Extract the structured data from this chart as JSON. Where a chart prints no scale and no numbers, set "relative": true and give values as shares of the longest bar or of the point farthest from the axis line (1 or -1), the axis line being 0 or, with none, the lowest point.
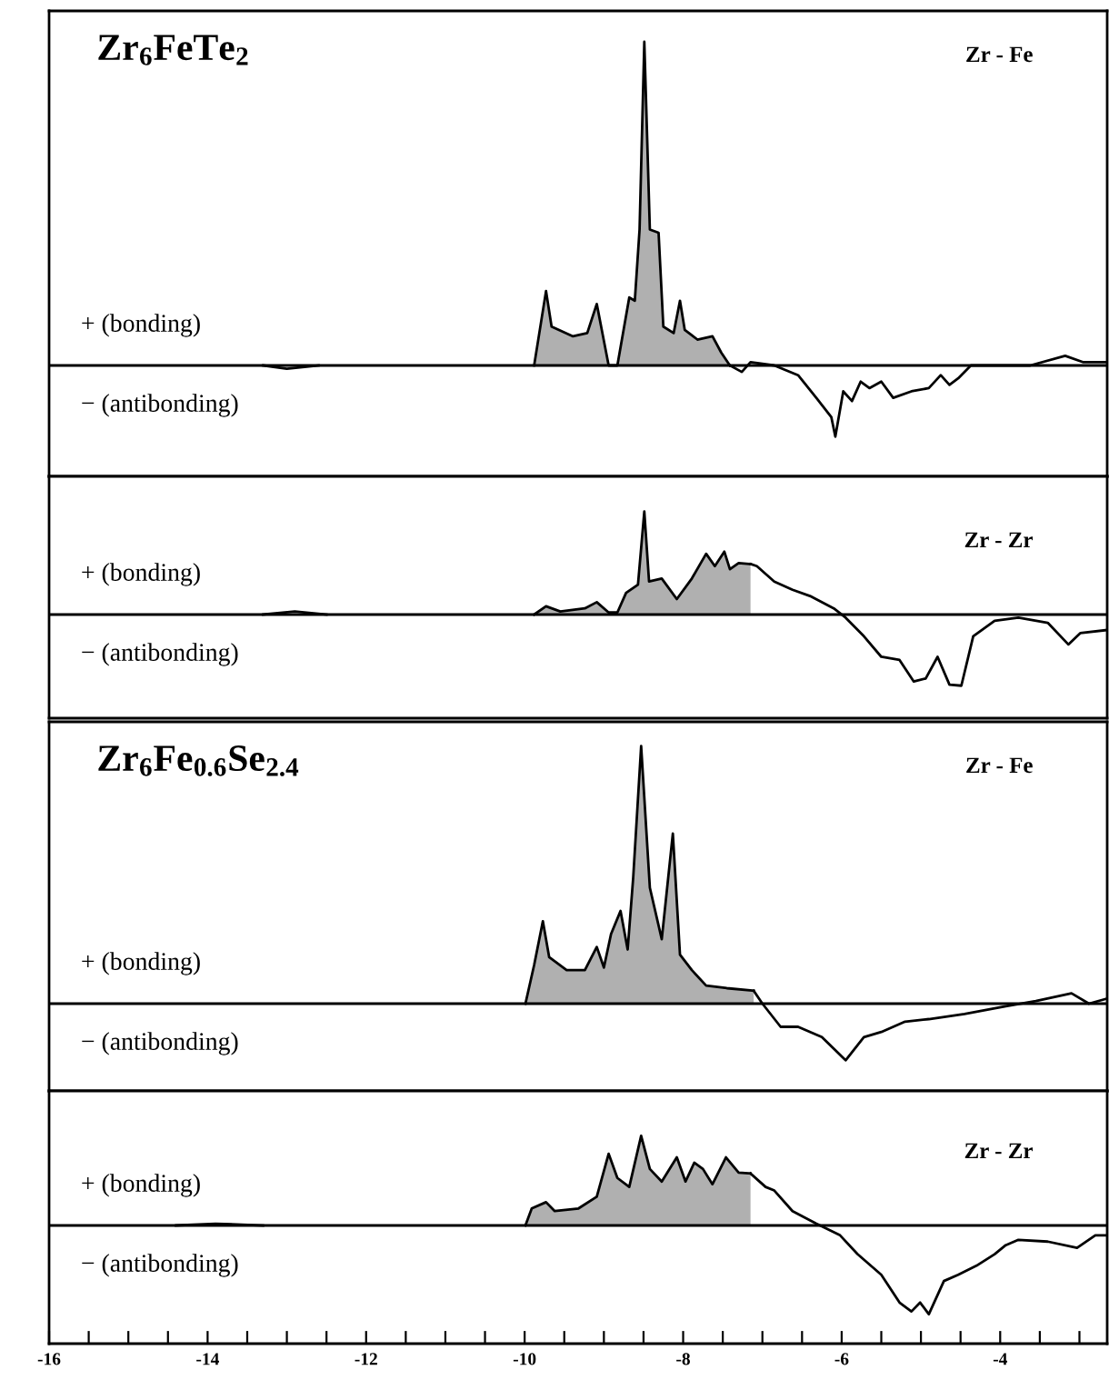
{
  "chart_data": [
    {
      "type": "area",
      "title": "Zr$_{6}$FeTe$_{2}$",
      "relative": true,
      "xlim": [
        -16,
        -2.65
      ],
      "tick_labels": false,
      "grid": false,
      "legend": false,
      "annotations": [
        "Zr - Fe",
        "+ (bonding)",
        "− (antibonding)"
      ],
      "series": [
        {
          "type": "line",
          "color": "#000000",
          "x": [
            -13.3,
            -13.0,
            -12.6
          ],
          "values": [
            0,
            -0.01,
            0
          ]
        },
        {
          "type": "area",
          "color": "#b0b0b0",
          "x": [
            -9.88,
            -9.73,
            -9.66,
            -9.39,
            -9.21,
            -9.09,
            -8.94,
            -8.83,
            -8.68,
            -8.61,
            -8.55,
            -8.49,
            -8.42,
            -8.31,
            -8.25,
            -8.12,
            -8.04,
            -7.98,
            -7.82,
            -7.63,
            -7.52,
            -7.41
          ],
          "values": [
            0,
            0.23,
            0.12,
            0.09,
            0.1,
            0.19,
            0,
            0,
            0.21,
            0.2,
            0.42,
            1.0,
            0.42,
            0.41,
            0.12,
            0.1,
            0.2,
            0.11,
            0.08,
            0.09,
            0.04,
            0
          ]
        },
        {
          "type": "line",
          "color": "#000000",
          "x": [
            -7.41,
            -7.26,
            -7.15,
            -6.85,
            -6.55,
            -6.32,
            -6.13,
            -6.08,
            -5.98,
            -5.87,
            -5.76,
            -5.65,
            -5.5,
            -5.35,
            -5.12,
            -4.9,
            -4.75,
            -4.64,
            -4.53,
            -4.37,
            -3.62,
            -3.18,
            -2.95,
            -2.65
          ],
          "values": [
            0,
            -0.02,
            0.01,
            0,
            -0.03,
            -0.1,
            -0.16,
            -0.22,
            -0.08,
            -0.11,
            -0.05,
            -0.07,
            -0.05,
            -0.1,
            -0.08,
            -0.07,
            -0.03,
            -0.06,
            -0.04,
            0,
            0,
            0.03,
            0.01,
            0.01
          ]
        }
      ]
    },
    {
      "type": "area",
      "relative": true,
      "xlim": [
        -16,
        -2.65
      ],
      "tick_labels": false,
      "grid": false,
      "legend": false,
      "annotations": [
        "Zr - Zr",
        "+ (bonding)",
        "− (antibonding)"
      ],
      "series": [
        {
          "type": "line",
          "color": "#000000",
          "x": [
            -13.3,
            -12.9,
            -12.5
          ],
          "values": [
            0,
            0.03,
            0
          ]
        },
        {
          "type": "area",
          "color": "#b0b0b0",
          "x": [
            -9.88,
            -9.73,
            -9.55,
            -9.24,
            -9.09,
            -8.94,
            -8.83,
            -8.72,
            -8.57,
            -8.49,
            -8.43,
            -8.27,
            -8.08,
            -7.89,
            -7.71,
            -7.6,
            -7.48,
            -7.41,
            -7.3,
            -7.15
          ],
          "values": [
            0,
            0.08,
            0.03,
            0.06,
            0.12,
            0.02,
            0.02,
            0.21,
            0.29,
            1.0,
            0.32,
            0.35,
            0.15,
            0.35,
            0.59,
            0.47,
            0.61,
            0.44,
            0.5,
            0.49
          ]
        },
        {
          "type": "line",
          "color": "#000000",
          "x": [
            -7.15,
            -7.07,
            -6.85,
            -6.62,
            -6.4,
            -6.1,
            -5.95,
            -5.72,
            -5.5,
            -5.27,
            -5.09,
            -4.94,
            -4.79,
            -4.64,
            -4.49,
            -4.34,
            -4.07,
            -3.77,
            -3.4,
            -3.14,
            -2.99,
            -2.65
          ],
          "values": [
            0.49,
            0.47,
            0.32,
            0.24,
            0.18,
            0.06,
            -0.03,
            -0.21,
            -0.41,
            -0.44,
            -0.65,
            -0.62,
            -0.41,
            -0.68,
            -0.69,
            -0.21,
            -0.06,
            -0.03,
            -0.08,
            -0.29,
            -0.18,
            -0.15
          ]
        }
      ]
    },
    {
      "type": "area",
      "title": "Zr$_{6}$Fe$_{0.6}$Se$_{2.4}$",
      "relative": true,
      "xlim": [
        -16,
        -2.65
      ],
      "tick_labels": false,
      "grid": false,
      "legend": false,
      "annotations": [
        "Zr - Fe",
        "+ (bonding)",
        "− (antibonding)"
      ],
      "series": [
        {
          "type": "area",
          "color": "#b0b0b0",
          "x": [
            -9.99,
            -9.88,
            -9.77,
            -9.69,
            -9.47,
            -9.24,
            -9.09,
            -9.0,
            -8.91,
            -8.79,
            -8.7,
            -8.63,
            -8.53,
            -8.42,
            -8.27,
            -8.13,
            -8.04,
            -7.89,
            -7.71,
            -7.45,
            -7.11
          ],
          "values": [
            0,
            0.15,
            0.32,
            0.18,
            0.13,
            0.13,
            0.22,
            0.14,
            0.27,
            0.36,
            0.21,
            0.49,
            1.0,
            0.45,
            0.25,
            0.66,
            0.19,
            0.13,
            0.07,
            0.06,
            0.05
          ]
        },
        {
          "type": "line",
          "color": "#000000",
          "x": [
            -7.11,
            -7.0,
            -6.77,
            -6.55,
            -6.25,
            -5.95,
            -5.72,
            -5.5,
            -5.2,
            -4.9,
            -4.45,
            -3.93,
            -3.55,
            -3.1,
            -2.88,
            -2.65
          ],
          "values": [
            0.05,
            0,
            -0.09,
            -0.09,
            -0.13,
            -0.22,
            -0.13,
            -0.11,
            -0.07,
            -0.06,
            -0.04,
            -0.01,
            0.01,
            0.04,
            0,
            0.02
          ]
        }
      ]
    },
    {
      "type": "area",
      "relative": true,
      "xlim": [
        -16,
        -2.65
      ],
      "tick_labels": "x",
      "grid": false,
      "legend": false,
      "xticks": [
        -16,
        {
          "value": -15.5,
          "label": null
        },
        {
          "value": -15,
          "label": null
        },
        {
          "value": -14.5,
          "label": null
        },
        -14,
        {
          "value": -13.5,
          "label": null
        },
        {
          "value": -13,
          "label": null
        },
        {
          "value": -12.5,
          "label": null
        },
        -12,
        {
          "value": -11.5,
          "label": null
        },
        {
          "value": -11,
          "label": null
        },
        {
          "value": -10.5,
          "label": null
        },
        -10,
        {
          "value": -9.5,
          "label": null
        },
        {
          "value": -9,
          "label": null
        },
        {
          "value": -8.5,
          "label": null
        },
        -8,
        {
          "value": -7.5,
          "label": null
        },
        {
          "value": -7,
          "label": null
        },
        {
          "value": -6.5,
          "label": null
        },
        -6,
        {
          "value": -5.5,
          "label": null
        },
        {
          "value": -5,
          "label": null
        },
        {
          "value": -4.5,
          "label": null
        },
        -4,
        {
          "value": -3.5,
          "label": null
        },
        {
          "value": -3,
          "label": null
        }
      ],
      "annotations": [
        "Zr - Zr",
        "+ (bonding)",
        "− (antibonding)"
      ],
      "series": [
        {
          "type": "line",
          "color": "#000000",
          "x": [
            -14.4,
            -13.9,
            -13.3
          ],
          "values": [
            0,
            0.02,
            0
          ]
        },
        {
          "type": "area",
          "color": "#b0b0b0",
          "x": [
            -9.99,
            -9.91,
            -9.73,
            -9.62,
            -9.32,
            -9.09,
            -8.94,
            -8.83,
            -8.68,
            -8.53,
            -8.42,
            -8.27,
            -8.08,
            -7.97,
            -7.86,
            -7.75,
            -7.63,
            -7.46,
            -7.3,
            -7.15
          ],
          "values": [
            0,
            0.19,
            0.26,
            0.16,
            0.19,
            0.32,
            0.8,
            0.53,
            0.43,
            1.0,
            0.63,
            0.49,
            0.76,
            0.49,
            0.7,
            0.63,
            0.46,
            0.76,
            0.59,
            0.58
          ]
        },
        {
          "type": "line",
          "color": "#000000",
          "x": [
            -7.15,
            -6.96,
            -6.85,
            -6.62,
            -6.32,
            -6.02,
            -5.8,
            -5.5,
            -5.27,
            -5.12,
            -5.01,
            -4.9,
            -4.71,
            -4.53,
            -4.3,
            -4.07,
            -3.93,
            -3.77,
            -3.4,
            -3.03,
            -2.8,
            -2.65
          ],
          "values": [
            0.58,
            0.43,
            0.39,
            0.16,
            0.02,
            -0.11,
            -0.32,
            -0.55,
            -0.86,
            -0.96,
            -0.86,
            -0.99,
            -0.62,
            -0.55,
            -0.45,
            -0.32,
            -0.22,
            -0.16,
            -0.18,
            -0.25,
            -0.11,
            -0.11
          ]
        }
      ]
    }
  ]
}
